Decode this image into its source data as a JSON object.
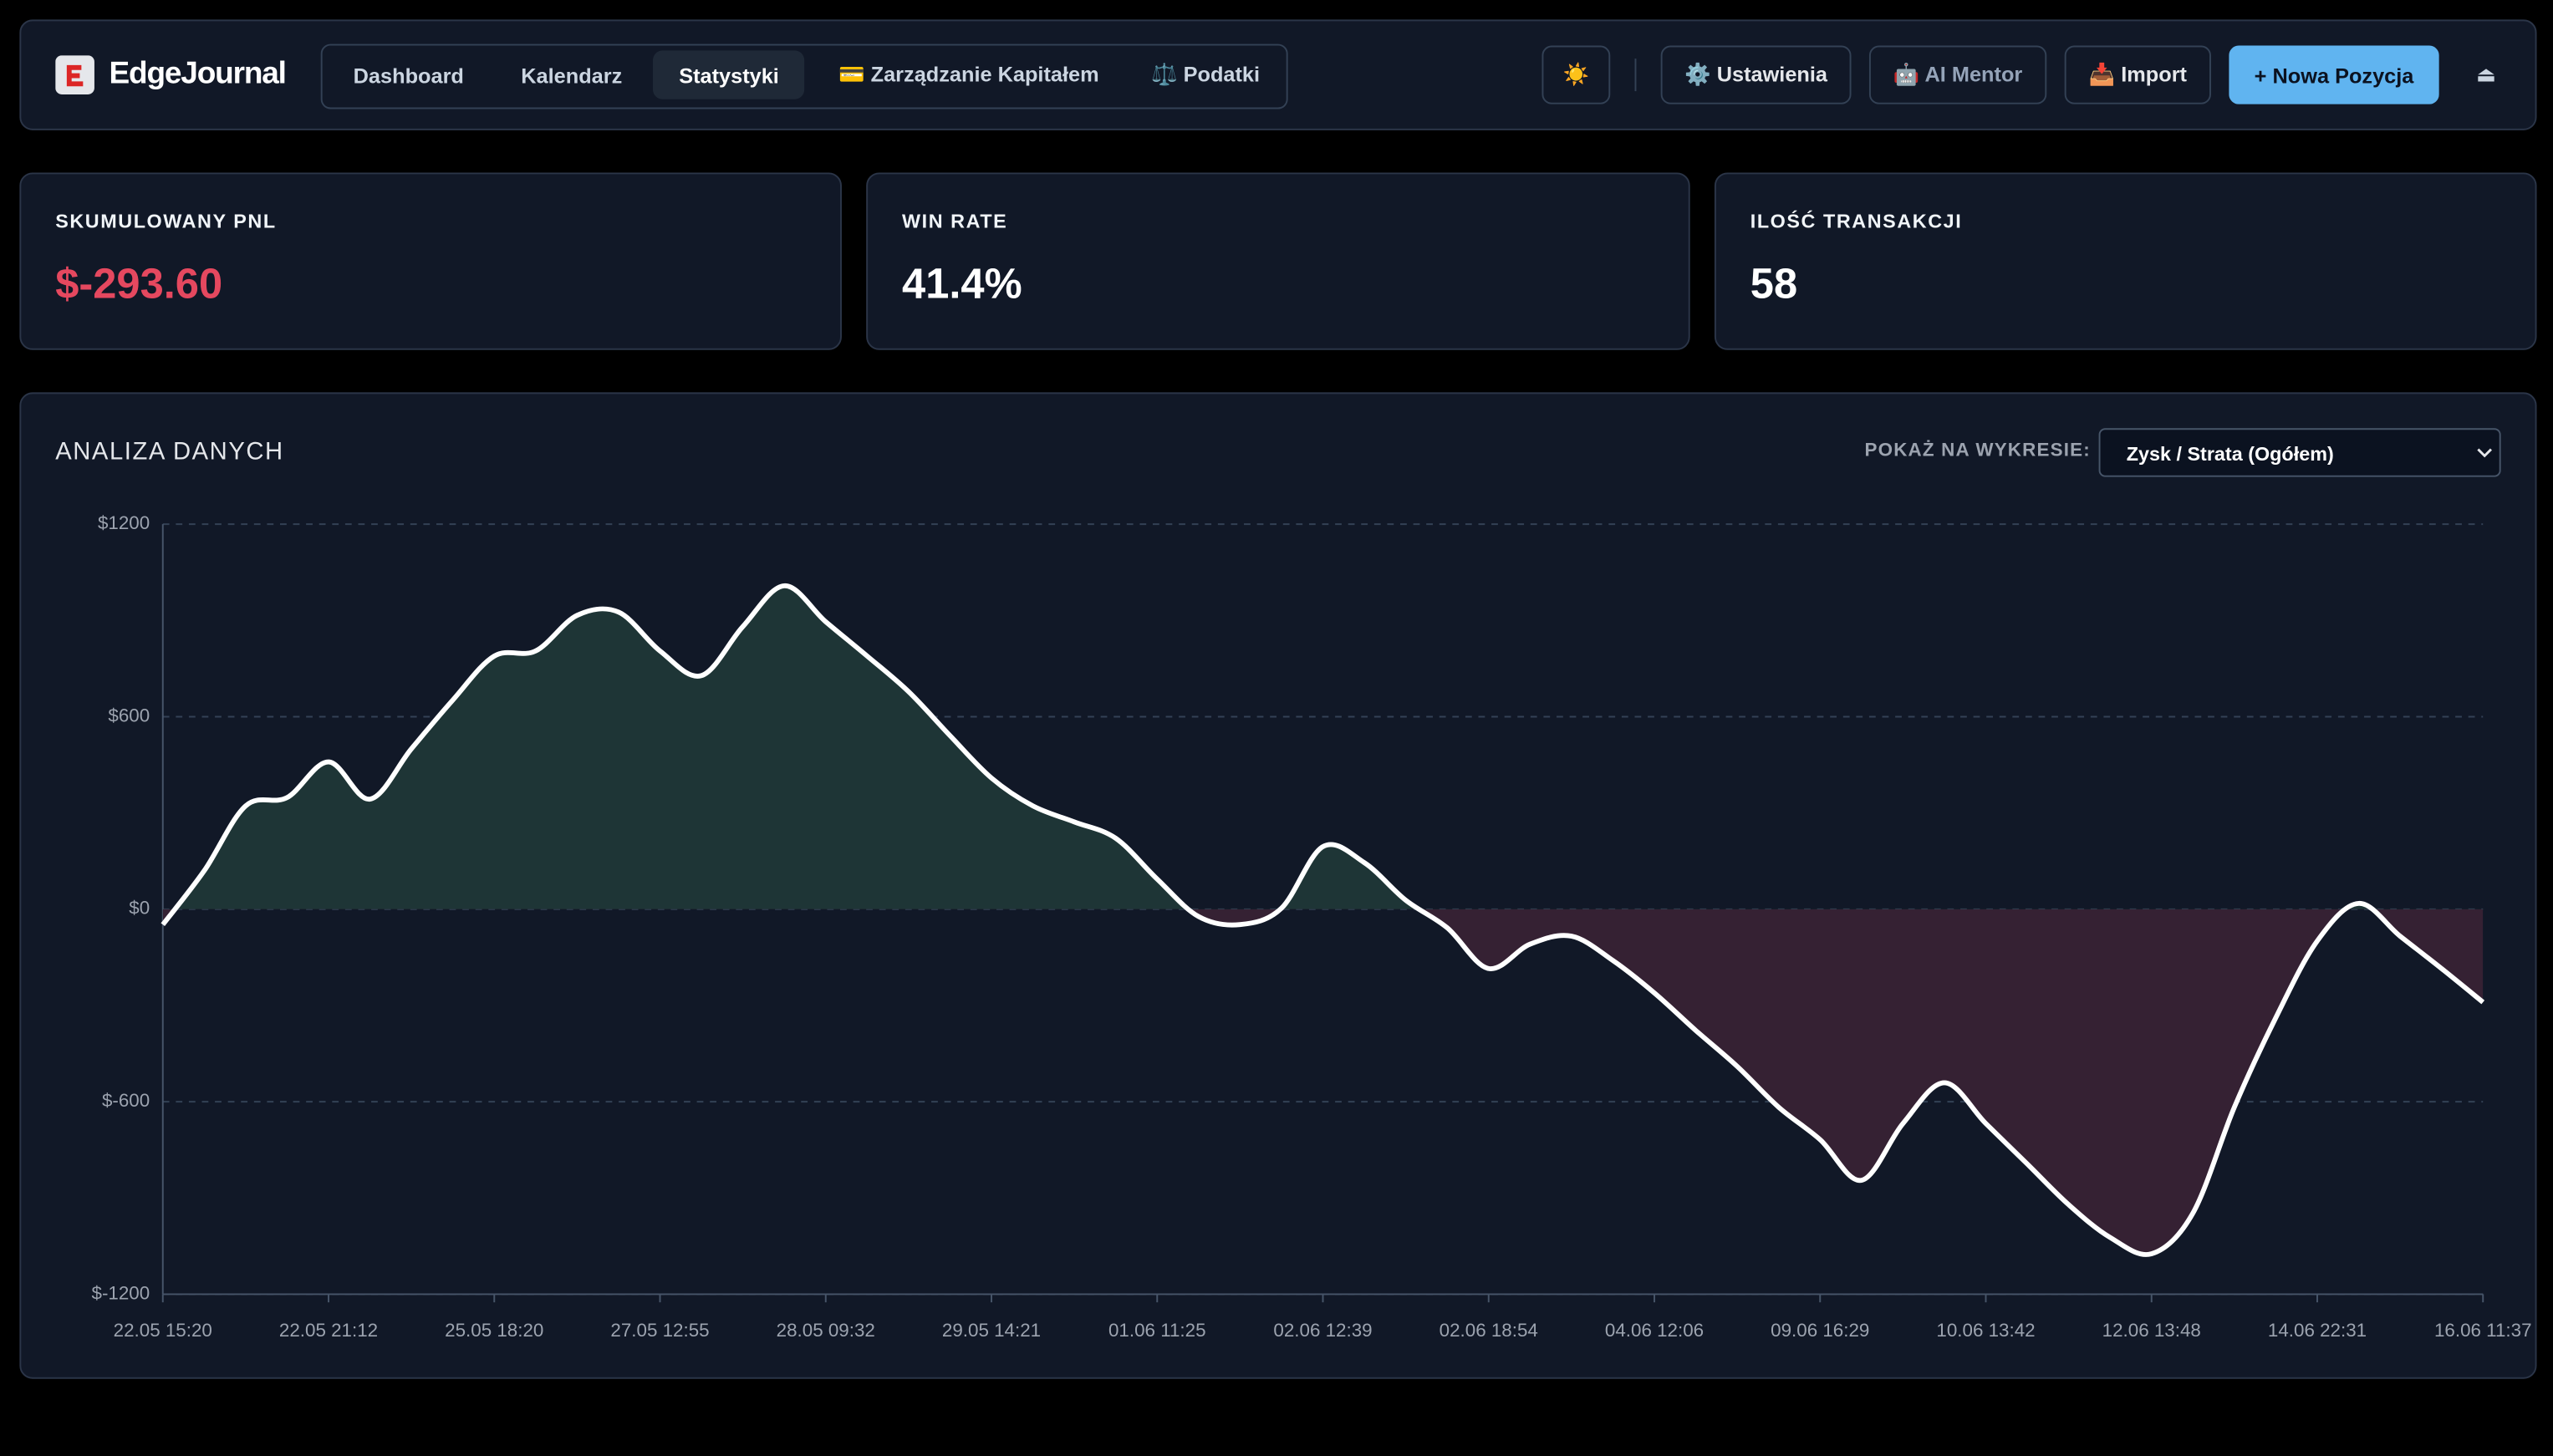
{
  "header": {
    "logo": "EdgeJournal",
    "nav": [
      "Dashboard",
      "Kalendarz",
      "Statystyki",
      "💳 Zarządzanie Kapitałem",
      "⚖️ Podatki"
    ],
    "theme_toggle": "☀️",
    "buttons": [
      "⚙️ Ustawienia",
      "🤖 AI Mentor",
      "📥 Import",
      "+ Nowa Pozycja"
    ],
    "logout": "⏏"
  },
  "stats": [
    {
      "label": "SKUMULOWANY PNL",
      "value": "$-293.60"
    },
    {
      "label": "WIN RATE",
      "value": "41.4%"
    },
    {
      "label": "ILOŚĆ TRANSAKCJI",
      "value": "58"
    }
  ],
  "panel": {
    "title": "ANALIZA DANYCH",
    "select_label": "POKAŻ NA WYKRESIE:",
    "select_value": "Zysk / Strata (Ogółem)"
  },
  "chart_data": {
    "type": "line",
    "categories": [
      "22.05 15:20",
      null,
      null,
      null,
      "22.05 21:12",
      null,
      null,
      null,
      "25.05 18:20",
      null,
      null,
      null,
      "27.05 12:55",
      null,
      null,
      null,
      "28.05 09:32",
      null,
      null,
      null,
      "29.05 14:21",
      null,
      null,
      null,
      "01.06 11:25",
      null,
      null,
      null,
      "02.06 12:39",
      null,
      null,
      null,
      "02.06 18:54",
      null,
      null,
      null,
      "04.06 12:06",
      null,
      null,
      null,
      "09.06 16:29",
      null,
      null,
      null,
      "10.06 13:42",
      null,
      null,
      null,
      "12.06 13:48",
      null,
      null,
      null,
      "14.06 22:31",
      null,
      null,
      null,
      "16.06 11:37"
    ],
    "values": [
      -48,
      120,
      322,
      348,
      459,
      343,
      500,
      652,
      789,
      805,
      916,
      926,
      805,
      728,
      881,
      1008,
      896,
      789,
      678,
      541,
      409,
      322,
      272,
      221,
      94,
      -23,
      -48,
      3,
      195,
      145,
      28,
      -58,
      -185,
      -109,
      -84,
      -160,
      -261,
      -378,
      -490,
      -617,
      -718,
      -845,
      -668,
      -541,
      -668,
      -794,
      -921,
      -1023,
      -1074,
      -947,
      -617,
      -338,
      -99,
      18,
      -84,
      -185,
      -290
    ],
    "color": "#ffffff",
    "positive_fill": "#1e3536",
    "negative_fill": "#352133",
    "ylim": [
      -1200,
      1200
    ],
    "yticks": [
      {
        "value": -1200,
        "label": "$-1200"
      },
      {
        "value": -600,
        "label": "$-600"
      },
      {
        "value": 0,
        "label": "$0"
      },
      {
        "value": 600,
        "label": "$600"
      },
      {
        "value": 1200,
        "label": "$1200"
      }
    ],
    "grid": true
  }
}
